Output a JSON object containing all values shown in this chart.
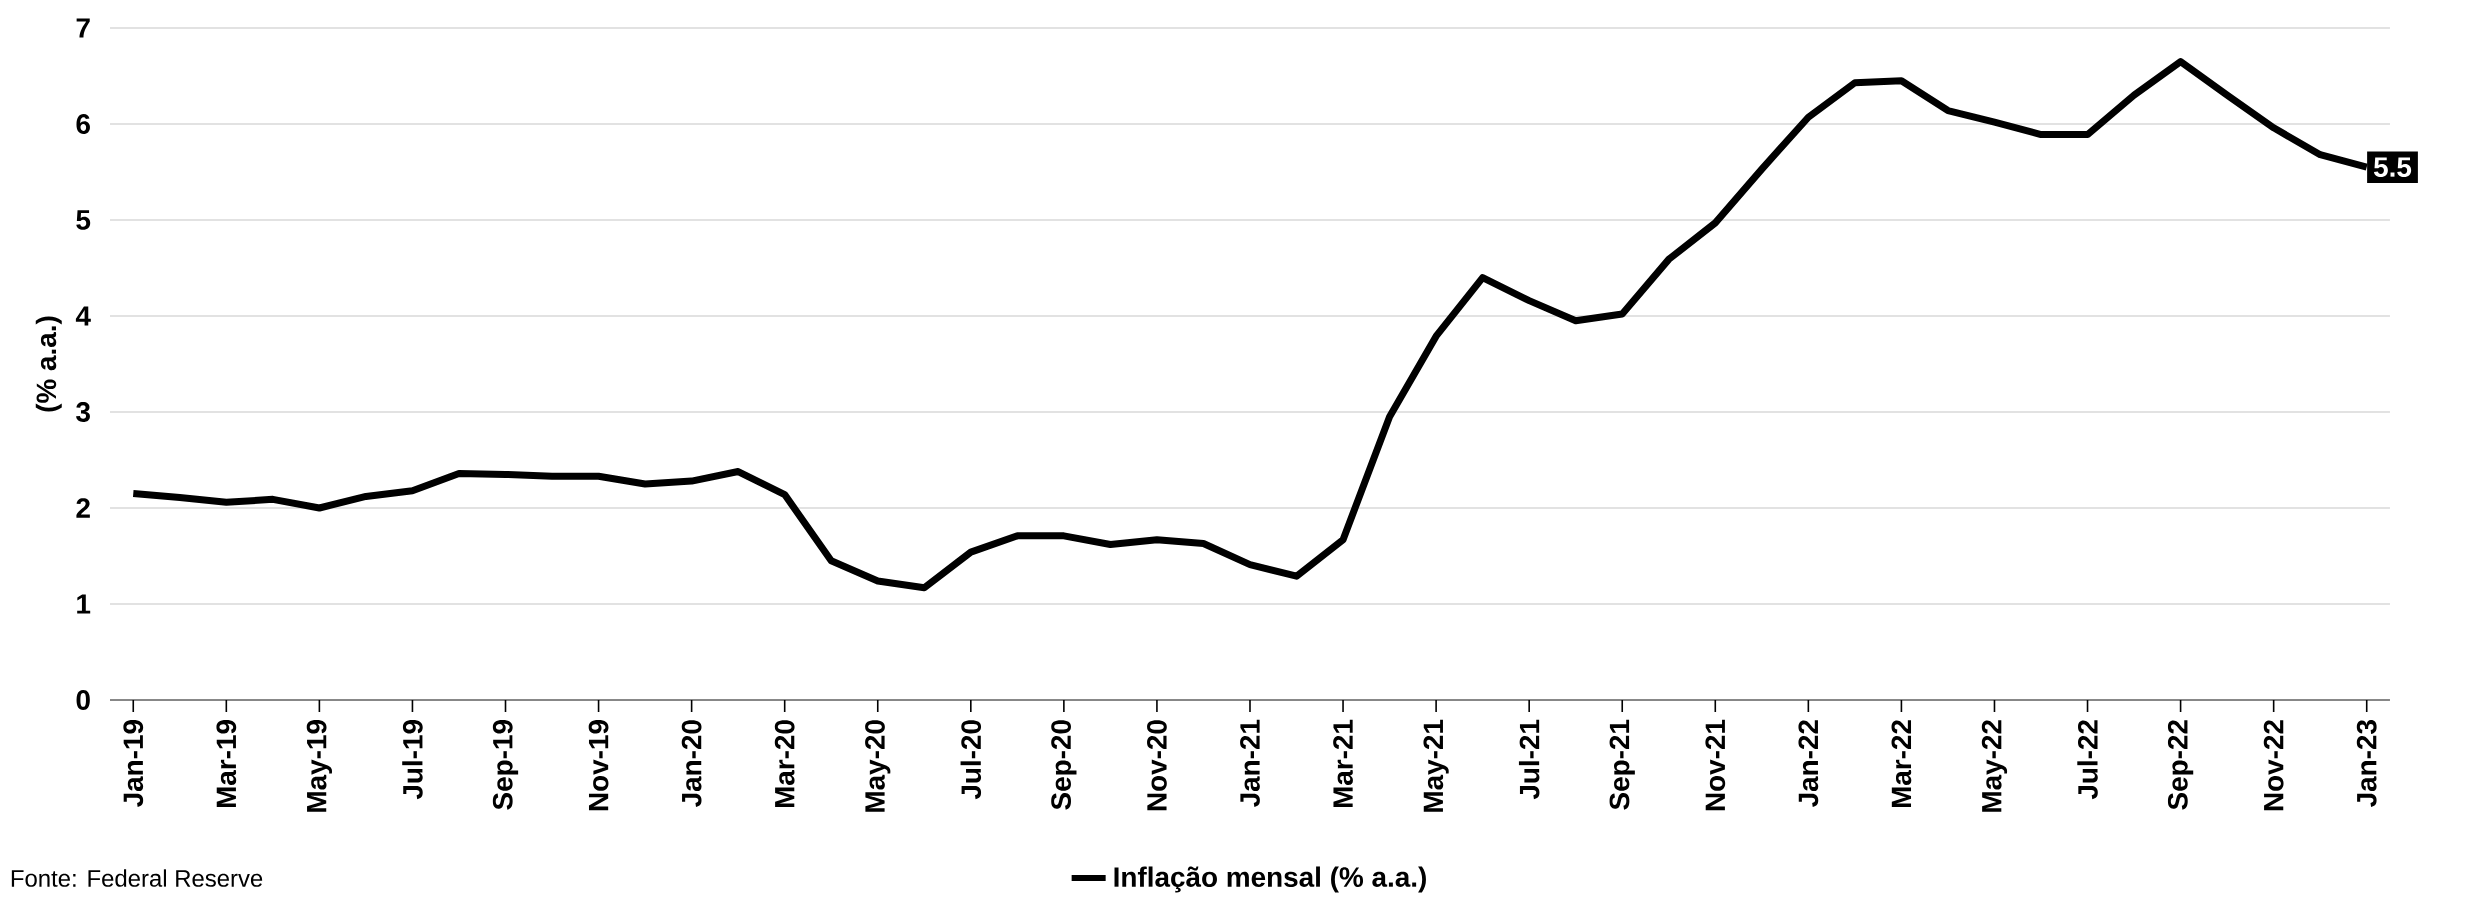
{
  "chart_data": {
    "type": "line",
    "ylabel": "(% a.a.)",
    "categories": [
      "Jan-19",
      null,
      "Mar-19",
      null,
      "May-19",
      null,
      "Jul-19",
      null,
      "Sep-19",
      null,
      "Nov-19",
      null,
      "Jan-20",
      null,
      "Mar-20",
      null,
      "May-20",
      null,
      "Jul-20",
      null,
      "Sep-20",
      null,
      "Nov-20",
      null,
      "Jan-21",
      null,
      "Mar-21",
      null,
      "May-21",
      null,
      "Jul-21",
      null,
      "Sep-21",
      null,
      "Nov-21",
      null,
      "Jan-22",
      null,
      "Mar-22",
      null,
      "May-22",
      null,
      "Jul-22",
      null,
      "Sep-22",
      null,
      "Nov-22",
      null,
      "Jan-23"
    ],
    "series": [
      {
        "name": "Inflação mensal (% a.a.)",
        "color": "#000000",
        "values": [
          2.15,
          2.11,
          2.06,
          2.09,
          2.0,
          2.12,
          2.18,
          2.36,
          2.35,
          2.33,
          2.33,
          2.25,
          2.28,
          2.38,
          2.14,
          1.45,
          1.24,
          1.17,
          1.54,
          1.71,
          1.71,
          1.62,
          1.67,
          1.63,
          1.41,
          1.29,
          1.67,
          2.95,
          3.79,
          4.4,
          4.16,
          3.95,
          4.02,
          4.59,
          4.97,
          5.53,
          6.07,
          6.43,
          6.45,
          6.14,
          6.02,
          5.89,
          5.89,
          6.3,
          6.65,
          6.3,
          5.96,
          5.68,
          5.55
        ],
        "value_labels": [
          null,
          null,
          null,
          null,
          null,
          null,
          null,
          null,
          null,
          null,
          null,
          null,
          null,
          null,
          null,
          null,
          null,
          null,
          null,
          null,
          null,
          null,
          null,
          null,
          null,
          null,
          null,
          null,
          null,
          null,
          null,
          null,
          null,
          null,
          null,
          null,
          null,
          null,
          null,
          null,
          null,
          null,
          null,
          null,
          null,
          null,
          null,
          null,
          "5.5"
        ]
      }
    ],
    "ylim": [
      0,
      7
    ],
    "yticks": [
      0,
      1,
      2,
      3,
      4,
      5,
      6,
      7
    ],
    "grid": "y",
    "legend": "bottom",
    "marker": "none",
    "line_style": "solid",
    "annotations": [
      "Fonte: Federal Reserve"
    ]
  }
}
